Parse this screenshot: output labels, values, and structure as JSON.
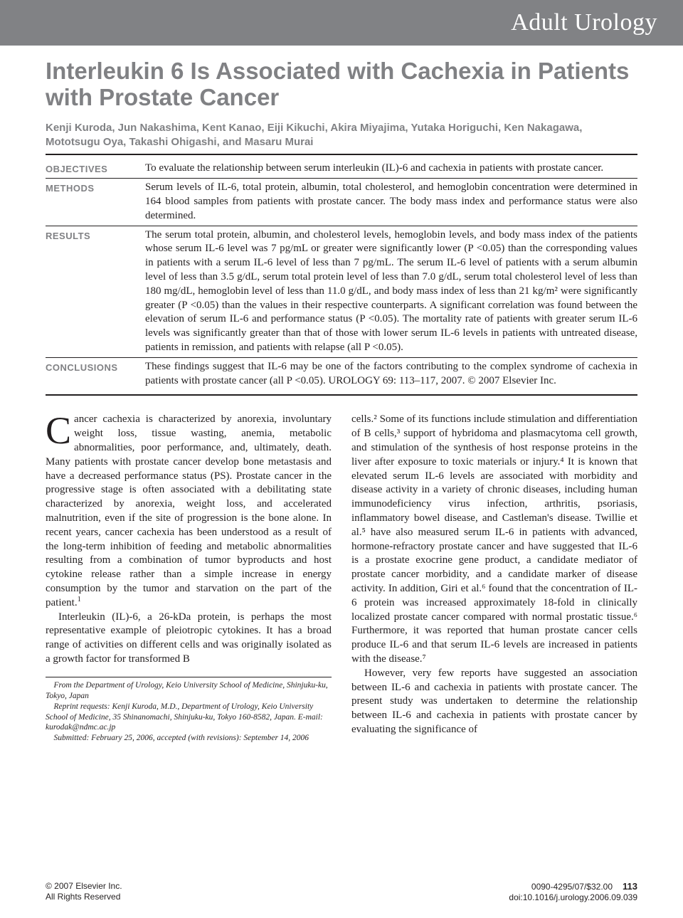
{
  "section_name": "Adult Urology",
  "title": "Interleukin 6 Is Associated with Cachexia in Patients with Prostate Cancer",
  "authors": "Kenji Kuroda, Jun Nakashima, Kent Kanao, Eiji Kikuchi, Akira Miyajima, Yutaka Horiguchi, Ken Nakagawa, Mototsugu Oya, Takashi Ohigashi, and Masaru Murai",
  "abstract": {
    "objectives": {
      "label": "OBJECTIVES",
      "text": "To evaluate the relationship between serum interleukin (IL)-6 and cachexia in patients with prostate cancer."
    },
    "methods": {
      "label": "METHODS",
      "text": "Serum levels of IL-6, total protein, albumin, total cholesterol, and hemoglobin concentration were determined in 164 blood samples from patients with prostate cancer. The body mass index and performance status were also determined."
    },
    "results": {
      "label": "RESULTS",
      "text": "The serum total protein, albumin, and cholesterol levels, hemoglobin levels, and body mass index of the patients whose serum IL-6 level was 7 pg/mL or greater were significantly lower (P <0.05) than the corresponding values in patients with a serum IL-6 level of less than 7 pg/mL. The serum IL-6 level of patients with a serum albumin level of less than 3.5 g/dL, serum total protein level of less than 7.0 g/dL, serum total cholesterol level of less than 180 mg/dL, hemoglobin level of less than 11.0 g/dL, and body mass index of less than 21 kg/m² were significantly greater (P <0.05) than the values in their respective counterparts. A significant correlation was found between the elevation of serum IL-6 and performance status (P <0.05). The mortality rate of patients with greater serum IL-6 levels was significantly greater than that of those with lower serum IL-6 levels in patients with untreated disease, patients in remission, and patients with relapse (all P <0.05)."
    },
    "conclusions": {
      "label": "CONCLUSIONS",
      "text": "These findings suggest that IL-6 may be one of the factors contributing to the complex syndrome of cachexia in patients with prostate cancer (all P <0.05).   UROLOGY 69: 113–117, 2007. © 2007 Elsevier Inc."
    }
  },
  "body": {
    "col1_p1_first": "C",
    "col1_p1": "ancer cachexia is characterized by anorexia, involuntary weight loss, tissue wasting, anemia, metabolic abnormalities, poor performance, and, ultimately, death. Many patients with prostate cancer develop bone metastasis and have a decreased performance status (PS). Prostate cancer in the progressive stage is often associated with a debilitating state characterized by anorexia, weight loss, and accelerated malnutrition, even if the site of progression is the bone alone. In recent years, cancer cachexia has been understood as a result of the long-term inhibition of feeding and metabolic abnormalities resulting from a combination of tumor byproducts and host cytokine release rather than a simple increase in energy consumption by the tumor and starvation on the part of the patient.",
    "col1_p2": "Interleukin (IL)-6, a 26-kDa protein, is perhaps the most representative example of pleiotropic cytokines. It has a broad range of activities on different cells and was originally isolated as a growth factor for transformed B",
    "col2_p1": "cells.² Some of its functions include stimulation and differentiation of B cells,³ support of hybridoma and plasmacytoma cell growth, and stimulation of the synthesis of host response proteins in the liver after exposure to toxic materials or injury.⁴ It is known that elevated serum IL-6 levels are associated with morbidity and disease activity in a variety of chronic diseases, including human immunodeficiency virus infection, arthritis, psoriasis, inflammatory bowel disease, and Castleman's disease. Twillie et al.⁵ have also measured serum IL-6 in patients with advanced, hormone-refractory prostate cancer and have suggested that IL-6 is a prostate exocrine gene product, a candidate mediator of prostate cancer morbidity, and a candidate marker of disease activity. In addition, Giri et al.⁶ found that the concentration of IL-6 protein was increased approximately 18-fold in clinically localized prostate cancer compared with normal prostatic tissue.⁶ Furthermore, it was reported that human prostate cancer cells produce IL-6 and that serum IL-6 levels are increased in patients with the disease.⁷",
    "col2_p2": "However, very few reports have suggested an association between IL-6 and cachexia in patients with prostate cancer. The present study was undertaken to determine the relationship between IL-6 and cachexia in patients with prostate cancer by evaluating the significance of"
  },
  "footnotes": {
    "affiliation": "From the Department of Urology, Keio University School of Medicine, Shinjuku-ku, Tokyo, Japan",
    "reprint": "Reprint requests: Kenji Kuroda, M.D., Department of Urology, Keio University School of Medicine, 35 Shinanomachi, Shinjuku-ku, Tokyo 160-8582, Japan. E-mail: kurodak@ndmc.ac.jp",
    "submitted": "Submitted: February 25, 2006, accepted (with revisions): September 14, 2006"
  },
  "footer": {
    "copyright": "© 2007 Elsevier Inc.",
    "rights": "All Rights Reserved",
    "issn": "0090-4295/07/$32.00",
    "doi": "doi:10.1016/j.urology.2006.09.039",
    "page": "113"
  },
  "colors": {
    "gray": "#818285",
    "text": "#231f20"
  }
}
